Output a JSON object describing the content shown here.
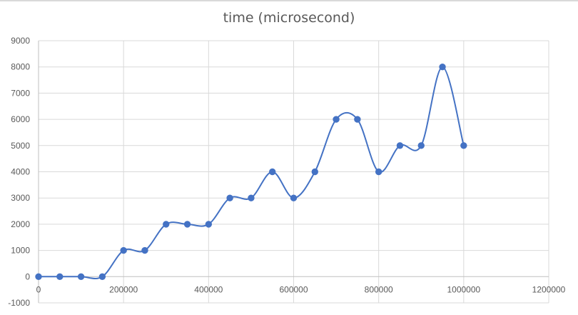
{
  "chart_data": {
    "type": "scatter",
    "title": "time (microsecond)",
    "xlabel": "",
    "ylabel": "",
    "xlim": [
      0,
      1200000
    ],
    "ylim": [
      -1000,
      9000
    ],
    "x_ticks": [
      0,
      200000,
      400000,
      600000,
      800000,
      1000000,
      1200000
    ],
    "y_ticks": [
      -1000,
      0,
      1000,
      2000,
      3000,
      4000,
      5000,
      6000,
      7000,
      8000,
      9000
    ],
    "grid": true,
    "smooth_line": true,
    "legend": "none",
    "series": [
      {
        "color": "#4472c4",
        "points": [
          {
            "x": 0,
            "y": 0
          },
          {
            "x": 50000,
            "y": 0
          },
          {
            "x": 100000,
            "y": 0
          },
          {
            "x": 150000,
            "y": 0
          },
          {
            "x": 200000,
            "y": 1000
          },
          {
            "x": 250000,
            "y": 1000
          },
          {
            "x": 300000,
            "y": 2000
          },
          {
            "x": 350000,
            "y": 2000
          },
          {
            "x": 400000,
            "y": 2000
          },
          {
            "x": 450000,
            "y": 3000
          },
          {
            "x": 500000,
            "y": 3000
          },
          {
            "x": 550000,
            "y": 4000
          },
          {
            "x": 600000,
            "y": 3000
          },
          {
            "x": 650000,
            "y": 4000
          },
          {
            "x": 700000,
            "y": 6000
          },
          {
            "x": 750000,
            "y": 6000
          },
          {
            "x": 800000,
            "y": 4000
          },
          {
            "x": 850000,
            "y": 5000
          },
          {
            "x": 900000,
            "y": 5000
          },
          {
            "x": 950000,
            "y": 8000
          },
          {
            "x": 1000000,
            "y": 5000
          }
        ]
      }
    ]
  },
  "colors": {
    "gridline": "#d9d9d9",
    "axis_line": "#bfbfbf",
    "series": "#4472c4",
    "text": "#595959"
  }
}
